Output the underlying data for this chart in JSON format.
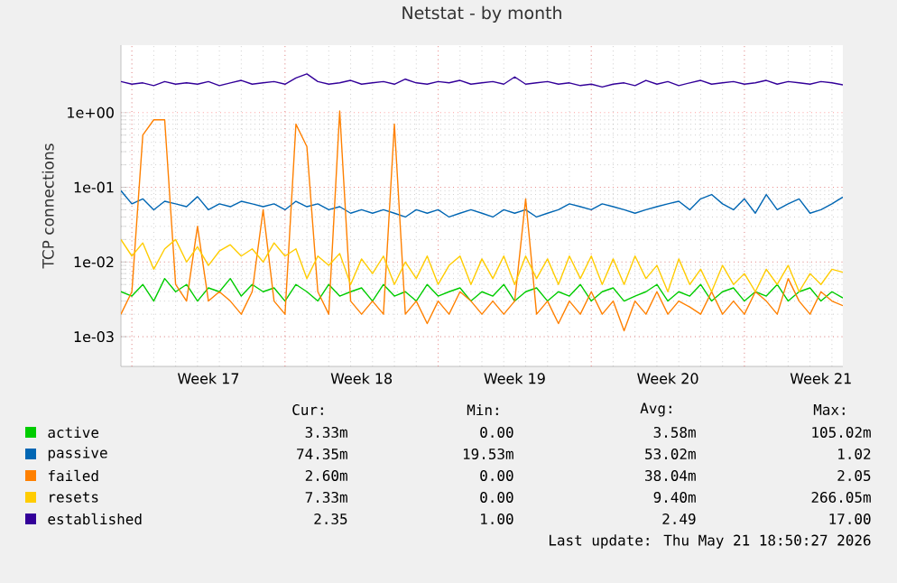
{
  "chart_data": {
    "type": "line",
    "title": "Netstat - by month",
    "ylabel": "TCP connections",
    "log": "y",
    "grid": true,
    "legend": "bottom",
    "ylim": [
      0.0004,
      8
    ],
    "yticks": [
      {
        "value": 0.001,
        "label": "1e-03"
      },
      {
        "value": 0.01,
        "label": "1e-02"
      },
      {
        "value": 0.1,
        "label": "1e-01"
      },
      {
        "value": 1,
        "label": "1e+00"
      }
    ],
    "categories": [
      null,
      null,
      null,
      null,
      null,
      null,
      null,
      null,
      "Week 17",
      null,
      null,
      null,
      null,
      null,
      null,
      null,
      null,
      null,
      null,
      null,
      null,
      null,
      "Week 18",
      null,
      null,
      null,
      null,
      null,
      null,
      null,
      null,
      null,
      null,
      null,
      null,
      null,
      "Week 19",
      null,
      null,
      null,
      null,
      null,
      null,
      null,
      null,
      null,
      null,
      null,
      null,
      null,
      "Week 20",
      null,
      null,
      null,
      null,
      null,
      null,
      null,
      null,
      null,
      null,
      null,
      null,
      null,
      "Week 21",
      null,
      null
    ],
    "series": [
      {
        "name": "active",
        "color": "#00cc00",
        "values": [
          0.004,
          0.0035,
          0.005,
          0.003,
          0.006,
          0.004,
          0.005,
          0.003,
          0.0045,
          0.004,
          0.006,
          0.0035,
          0.005,
          0.004,
          0.0045,
          0.003,
          0.005,
          0.004,
          0.003,
          0.005,
          0.0035,
          0.004,
          0.0045,
          0.003,
          0.005,
          0.0035,
          0.004,
          0.003,
          0.005,
          0.0035,
          0.004,
          0.0045,
          0.003,
          0.004,
          0.0035,
          0.005,
          0.003,
          0.004,
          0.0045,
          0.003,
          0.004,
          0.0035,
          0.005,
          0.003,
          0.004,
          0.0045,
          0.003,
          0.0035,
          0.004,
          0.005,
          0.003,
          0.004,
          0.0035,
          0.005,
          0.003,
          0.004,
          0.0045,
          0.003,
          0.004,
          0.0035,
          0.005,
          0.003,
          0.004,
          0.0045,
          0.003,
          0.004,
          0.0033
        ]
      },
      {
        "name": "passive",
        "color": "#0066b3",
        "values": [
          0.09,
          0.06,
          0.07,
          0.05,
          0.065,
          0.06,
          0.055,
          0.075,
          0.05,
          0.06,
          0.055,
          0.065,
          0.06,
          0.055,
          0.06,
          0.05,
          0.065,
          0.055,
          0.06,
          0.05,
          0.055,
          0.045,
          0.05,
          0.045,
          0.05,
          0.045,
          0.04,
          0.05,
          0.045,
          0.05,
          0.04,
          0.045,
          0.05,
          0.045,
          0.04,
          0.05,
          0.045,
          0.05,
          0.04,
          0.045,
          0.05,
          0.06,
          0.055,
          0.05,
          0.06,
          0.055,
          0.05,
          0.045,
          0.05,
          0.055,
          0.06,
          0.065,
          0.05,
          0.07,
          0.08,
          0.06,
          0.05,
          0.07,
          0.045,
          0.08,
          0.05,
          0.06,
          0.07,
          0.045,
          0.05,
          0.06,
          0.074
        ]
      },
      {
        "name": "failed",
        "color": "#ff8000",
        "values": [
          0.002,
          0.004,
          0.5,
          0.8,
          0.8,
          0.005,
          0.003,
          0.03,
          0.003,
          0.004,
          0.003,
          0.002,
          0.004,
          0.05,
          0.003,
          0.002,
          0.7,
          0.35,
          0.004,
          0.002,
          1.05,
          0.003,
          0.002,
          0.003,
          0.002,
          0.7,
          0.002,
          0.003,
          0.0015,
          0.003,
          0.002,
          0.004,
          0.003,
          0.002,
          0.003,
          0.002,
          0.003,
          0.07,
          0.002,
          0.003,
          0.0015,
          0.003,
          0.002,
          0.004,
          0.002,
          0.003,
          0.0012,
          0.003,
          0.002,
          0.004,
          0.002,
          0.003,
          0.0025,
          0.002,
          0.004,
          0.002,
          0.003,
          0.002,
          0.004,
          0.003,
          0.002,
          0.006,
          0.003,
          0.002,
          0.004,
          0.003,
          0.0026
        ]
      },
      {
        "name": "resets",
        "color": "#ffcc00",
        "values": [
          0.02,
          0.012,
          0.018,
          0.008,
          0.015,
          0.02,
          0.01,
          0.016,
          0.009,
          0.014,
          0.017,
          0.012,
          0.015,
          0.01,
          0.018,
          0.012,
          0.015,
          0.006,
          0.012,
          0.009,
          0.013,
          0.005,
          0.011,
          0.007,
          0.012,
          0.005,
          0.01,
          0.006,
          0.012,
          0.005,
          0.009,
          0.012,
          0.005,
          0.011,
          0.006,
          0.012,
          0.005,
          0.012,
          0.006,
          0.011,
          0.005,
          0.012,
          0.006,
          0.012,
          0.005,
          0.011,
          0.005,
          0.012,
          0.006,
          0.009,
          0.004,
          0.011,
          0.005,
          0.008,
          0.004,
          0.009,
          0.005,
          0.007,
          0.004,
          0.008,
          0.005,
          0.009,
          0.004,
          0.007,
          0.005,
          0.008,
          0.0073
        ]
      },
      {
        "name": "established",
        "color": "#330099",
        "values": [
          2.6,
          2.4,
          2.5,
          2.3,
          2.6,
          2.4,
          2.5,
          2.4,
          2.6,
          2.3,
          2.5,
          2.7,
          2.4,
          2.5,
          2.6,
          2.4,
          2.9,
          3.3,
          2.6,
          2.4,
          2.5,
          2.7,
          2.4,
          2.5,
          2.6,
          2.4,
          2.8,
          2.5,
          2.4,
          2.6,
          2.5,
          2.7,
          2.4,
          2.5,
          2.6,
          2.4,
          3.0,
          2.4,
          2.5,
          2.6,
          2.4,
          2.5,
          2.3,
          2.4,
          2.2,
          2.4,
          2.5,
          2.3,
          2.7,
          2.4,
          2.6,
          2.3,
          2.5,
          2.7,
          2.4,
          2.5,
          2.6,
          2.4,
          2.5,
          2.7,
          2.4,
          2.6,
          2.5,
          2.4,
          2.6,
          2.5,
          2.35
        ]
      }
    ],
    "annotations": [
      "Cur:",
      "Min:",
      "Avg:",
      "Max:",
      "3.33m",
      "0.00",
      "3.58m",
      "105.02m",
      "74.35m",
      "19.53m",
      "53.02m",
      "1.02",
      "2.60m",
      "0.00",
      "38.04m",
      "2.05",
      "7.33m",
      "0.00",
      "9.40m",
      "266.05m",
      "2.35",
      "1.00",
      "2.49",
      "17.00",
      "Last update: Thu May 21 18:50:27 2026"
    ]
  }
}
